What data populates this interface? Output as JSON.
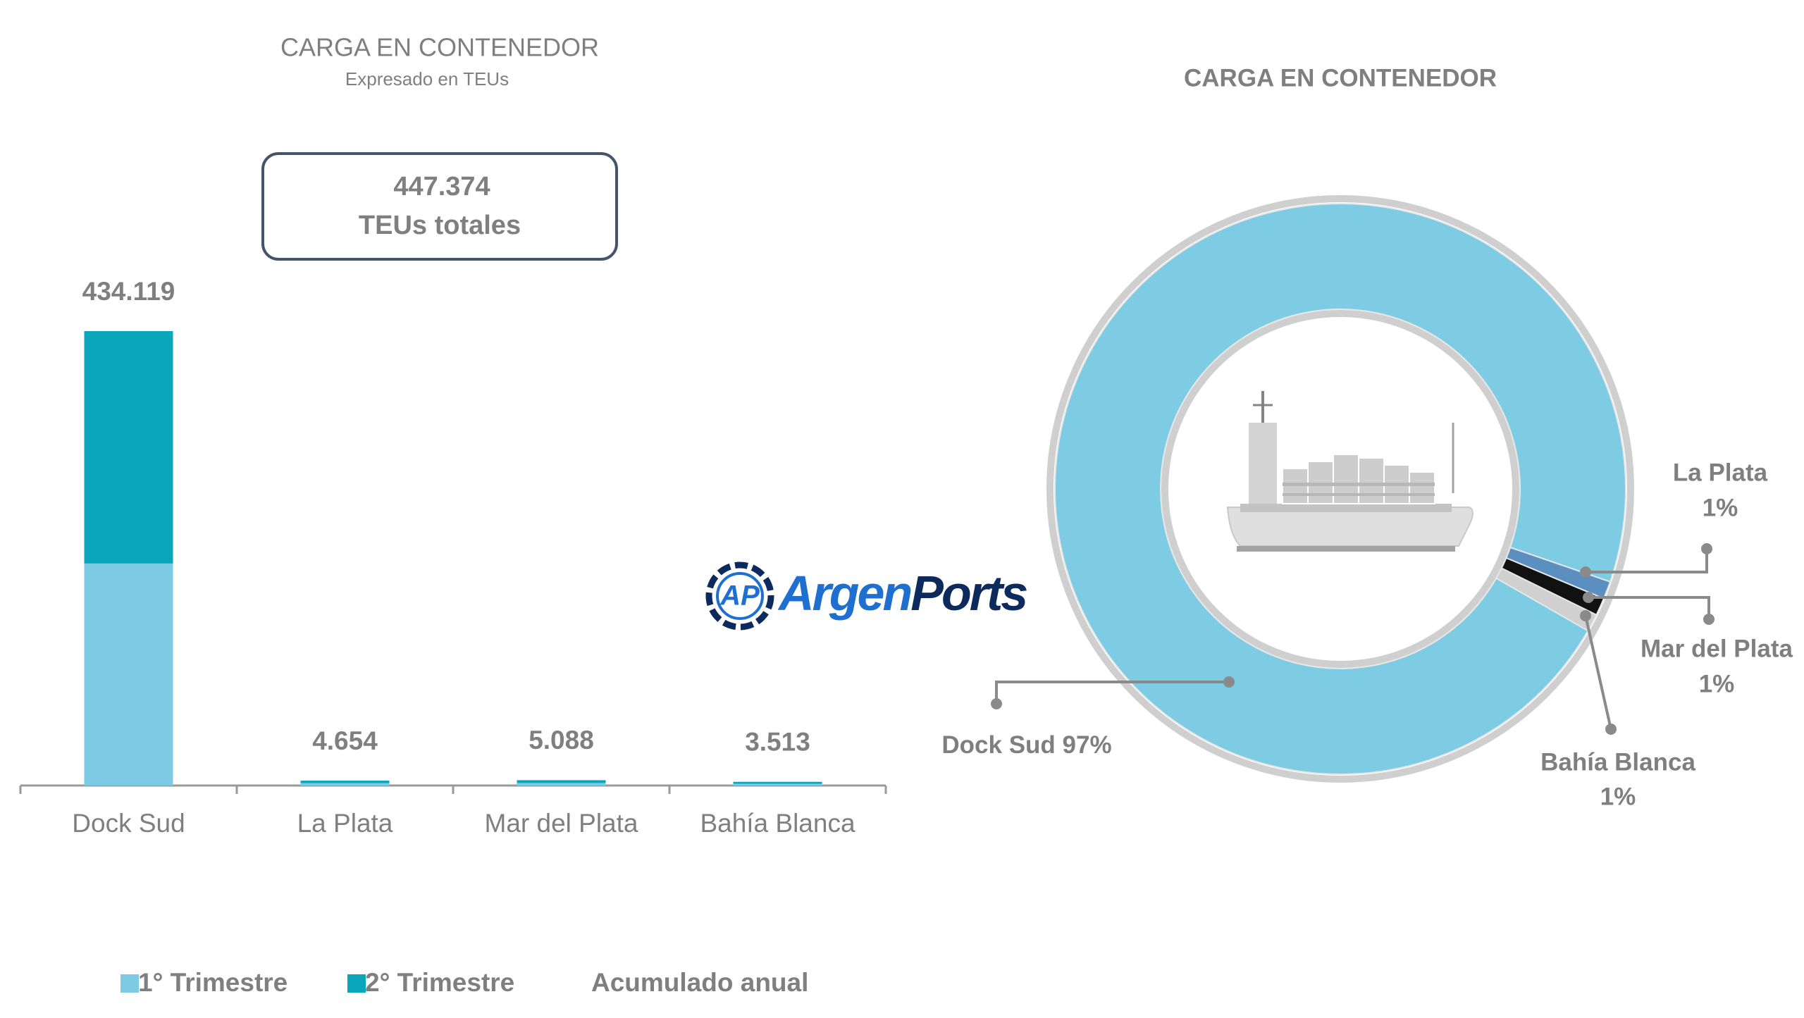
{
  "chart_data": [
    {
      "type": "bar",
      "title": "CARGA EN CONTENEDOR",
      "subtitle": "Expresado en TEUs",
      "annotation": {
        "value": 447374,
        "label": "447.374",
        "text": "TEUs totales"
      },
      "categories": [
        "Dock Sud",
        "La Plata",
        "Mar del Plata",
        "Bahía Blanca"
      ],
      "series": [
        {
          "name": "1° Trimestre",
          "color": "#7ccae3",
          "values": [
            212100,
            2300,
            2400,
            1700
          ]
        },
        {
          "name": "2° Trimestre",
          "color": "#08a6b8",
          "values": [
            222019,
            2354,
            2688,
            1813
          ]
        }
      ],
      "totals": {
        "name": "Acumulado anual",
        "values": [
          434119,
          4654,
          5088,
          3513
        ],
        "value_labels": [
          "434.119",
          "4.654",
          "5.088",
          "3.513"
        ]
      }
    },
    {
      "type": "donut",
      "title": "CARGA EN CONTENEDOR",
      "categories": [
        "Dock Sud",
        "La Plata",
        "Mar del Plata",
        "Bahía Blanca"
      ],
      "values": [
        97,
        1,
        1,
        1
      ],
      "value_labels": [
        "97%",
        "1%",
        "1%",
        "1%"
      ],
      "colors": [
        "#7ecbe4",
        "#5b8fc0",
        "#111111",
        "#d0d0d0"
      ]
    }
  ],
  "watermark": {
    "icon": "AP",
    "text_1": "Argen",
    "text_2": "Ports"
  }
}
